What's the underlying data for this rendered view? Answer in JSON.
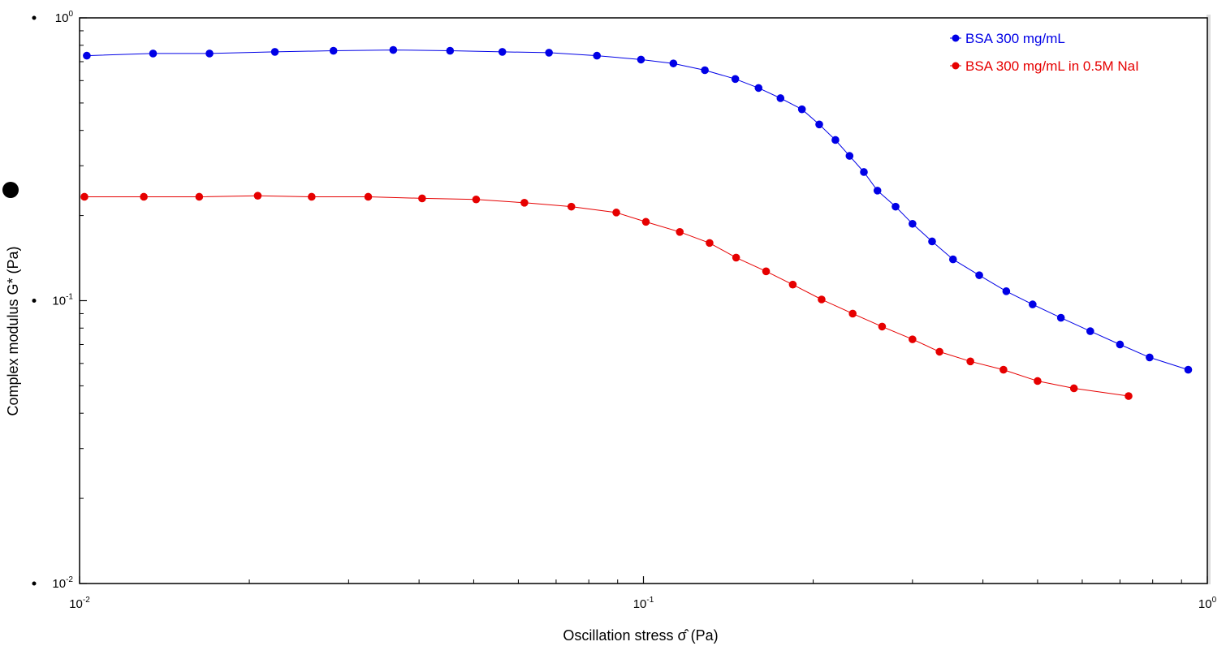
{
  "chart_data": {
    "type": "scatter",
    "x_scale": "log",
    "y_scale": "log",
    "xlabel": "Oscillation stress σ̂ (Pa)",
    "ylabel": "Complex modulus G* (Pa)",
    "xlim": [
      0.01,
      1
    ],
    "ylim": [
      0.01,
      1
    ],
    "x_ticks": [
      {
        "base": "10",
        "exp": "-2"
      },
      {
        "base": "10",
        "exp": "-1"
      },
      {
        "base": "10",
        "exp": "0"
      }
    ],
    "y_ticks": [
      {
        "base": "10",
        "exp": "-2"
      },
      {
        "base": "10",
        "exp": "-1"
      },
      {
        "base": "10",
        "exp": "0"
      }
    ],
    "grid": false,
    "legend_position": "top-right",
    "series": [
      {
        "name": "BSA 300 mg/mL",
        "color": "#0000e6",
        "marker": "circle",
        "line": true,
        "x": [
          0.0103,
          0.0135,
          0.017,
          0.0222,
          0.0282,
          0.036,
          0.0454,
          0.0562,
          0.068,
          0.0827,
          0.099,
          0.113,
          0.1285,
          0.1455,
          0.16,
          0.175,
          0.191,
          0.205,
          0.219,
          0.232,
          0.246,
          0.26,
          0.28,
          0.3,
          0.325,
          0.354,
          0.394,
          0.44,
          0.49,
          0.55,
          0.62,
          0.7,
          0.79,
          0.925
        ],
        "y": [
          0.735,
          0.748,
          0.748,
          0.758,
          0.765,
          0.77,
          0.765,
          0.758,
          0.753,
          0.735,
          0.712,
          0.69,
          0.653,
          0.608,
          0.565,
          0.52,
          0.475,
          0.42,
          0.37,
          0.325,
          0.285,
          0.245,
          0.215,
          0.187,
          0.162,
          0.14,
          0.123,
          0.108,
          0.097,
          0.087,
          0.078,
          0.07,
          0.063,
          0.057
        ]
      },
      {
        "name": "BSA 300 mg/mL in 0.5M NaI",
        "color": "#e60000",
        "marker": "circle",
        "line": true,
        "x": [
          0.0102,
          0.013,
          0.0163,
          0.0207,
          0.0258,
          0.0325,
          0.0405,
          0.0505,
          0.0615,
          0.0745,
          0.0895,
          0.101,
          0.116,
          0.131,
          0.146,
          0.165,
          0.184,
          0.207,
          0.235,
          0.265,
          0.3,
          0.335,
          0.38,
          0.435,
          0.5,
          0.58,
          0.725
        ],
        "y": [
          0.233,
          0.233,
          0.233,
          0.235,
          0.233,
          0.233,
          0.23,
          0.228,
          0.222,
          0.215,
          0.205,
          0.19,
          0.175,
          0.16,
          0.142,
          0.127,
          0.114,
          0.101,
          0.09,
          0.081,
          0.073,
          0.066,
          0.061,
          0.057,
          0.052,
          0.049,
          0.046
        ]
      }
    ]
  }
}
